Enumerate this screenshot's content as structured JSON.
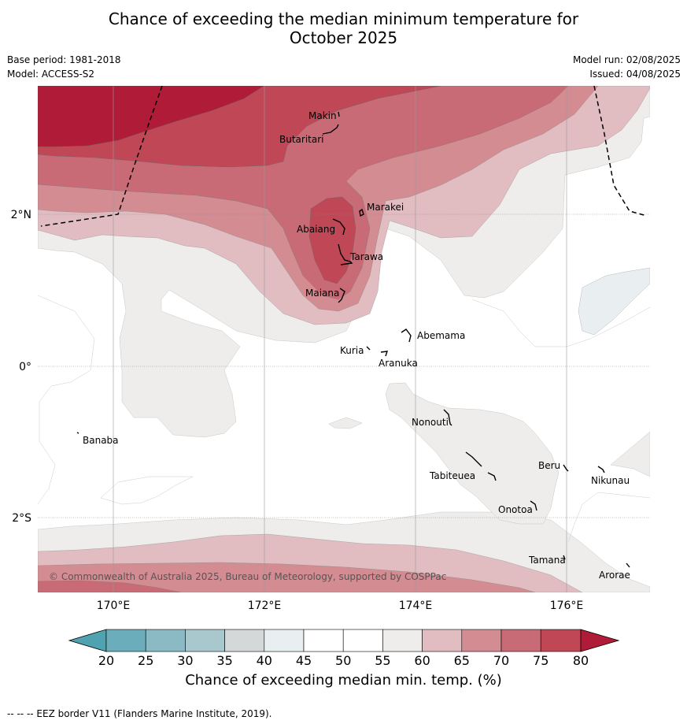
{
  "header": {
    "title_line1": "Chance of exceeding the median minimum temperature for",
    "title_line2": "October 2025",
    "base_period": "Base period: 1981-2018",
    "model": "Model: ACCESS-S2",
    "model_run": "Model run: 02/08/2025",
    "issued": "Issued: 04/08/2025"
  },
  "map": {
    "lat_labels": [
      "2°N",
      "0°",
      "2°S"
    ],
    "lon_labels": [
      "170°E",
      "172°E",
      "174°E",
      "176°E"
    ],
    "places": [
      "Makin",
      "Butaritari",
      "Marakei",
      "Abaiang",
      "Tarawa",
      "Maiana",
      "Abemama",
      "Kuria",
      "Aranuka",
      "Nonouti",
      "Banaba",
      "Tabiteuea",
      "Beru",
      "Nikunau",
      "Onotoa",
      "Tamana",
      "Arorae"
    ],
    "copyright": "© Commonwealth of Australia 2025, Bureau of Meteorology, supported by COSPPac"
  },
  "colorbar": {
    "ticks": [
      "20",
      "25",
      "30",
      "35",
      "40",
      "45",
      "50",
      "55",
      "60",
      "65",
      "70",
      "75",
      "80"
    ],
    "colors": {
      "below_20": "#4fa2b0",
      "20_25": "#6badbb",
      "25_30": "#8bbac5",
      "30_35": "#a9c8cd",
      "35_40": "#d5d8d9",
      "40_45": "#e9eff1",
      "45_50": "#ffffff",
      "50_55": "#ffffff",
      "55_60": "#eeedec",
      "60_65": "#e1bcc0",
      "65_70": "#d48c93",
      "70_75": "#c86b76",
      "75_80": "#bf4756",
      "above_80": "#b01c38"
    },
    "label": "Chance of exceeding median min. temp. (%)"
  },
  "footer": {
    "eez_legend": "-- -- -- EEZ border V11 (Flanders Marine Institute, 2019)."
  }
}
